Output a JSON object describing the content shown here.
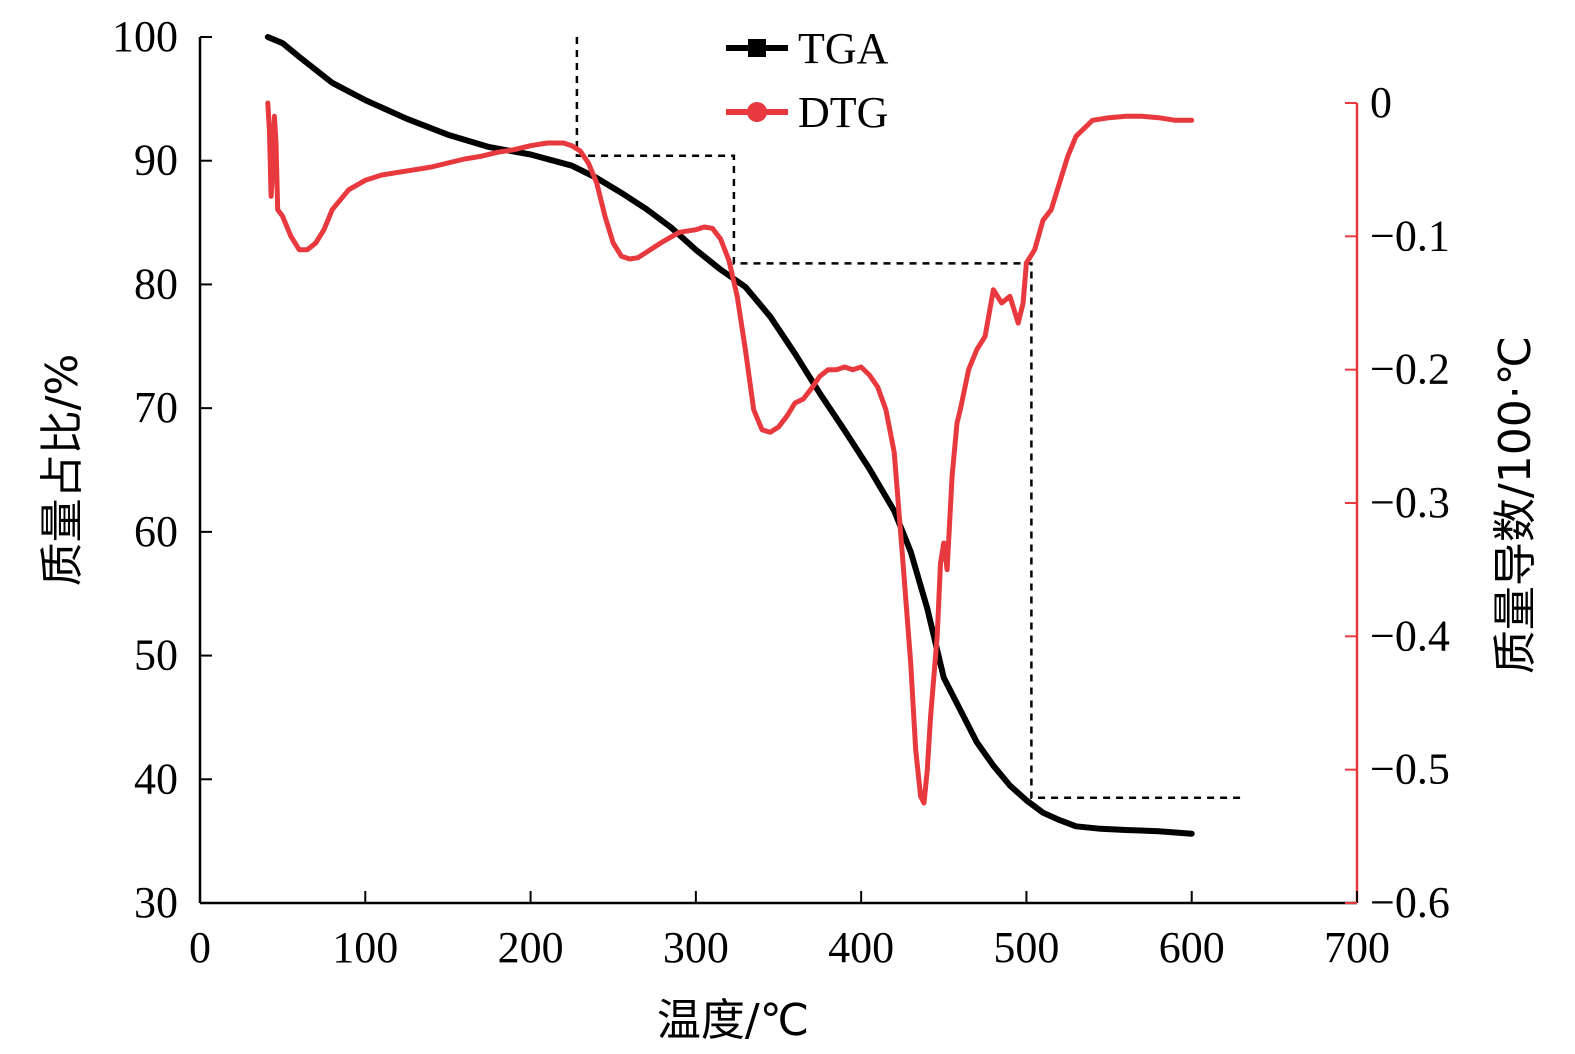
{
  "chart_data": {
    "type": "line",
    "xlabel": "温度/℃",
    "ylabel_left": "质量占比/%",
    "ylabel_right": "质量导数/100·℃",
    "xlim": [
      0,
      700
    ],
    "ylim_left": [
      30,
      100
    ],
    "ylim_right": [
      -0.6,
      0.0
    ],
    "x_ticks": [
      "0",
      "100",
      "200",
      "300",
      "400",
      "500",
      "600",
      "700"
    ],
    "y_left_ticks": [
      "30",
      "40",
      "50",
      "60",
      "70",
      "80",
      "90",
      "100"
    ],
    "y_right_ticks": [
      "0",
      "−0.1",
      "−0.2",
      "−0.3",
      "−0.4",
      "−0.5",
      "−0.6"
    ],
    "grid": false,
    "legend_position": "top-center",
    "series": [
      {
        "name": "TGA",
        "axis": "left",
        "color": "#000000",
        "marker": "square",
        "x": [
          41,
          50,
          60,
          80,
          100,
          125,
          150,
          175,
          200,
          225,
          240,
          255,
          270,
          285,
          300,
          315,
          330,
          345,
          360,
          375,
          390,
          405,
          420,
          430,
          440,
          450,
          460,
          470,
          480,
          490,
          500,
          510,
          520,
          530,
          545,
          560,
          580,
          600
        ],
        "y": [
          100,
          99.5,
          98.4,
          96.3,
          94.9,
          93.4,
          92.1,
          91.1,
          90.5,
          89.6,
          88.6,
          87.4,
          86.1,
          84.6,
          82.8,
          81.2,
          79.8,
          77.4,
          74.4,
          71.2,
          68.2,
          65.1,
          61.7,
          58.4,
          53.8,
          48.2,
          45.6,
          43.0,
          41.1,
          39.5,
          38.3,
          37.3,
          36.7,
          36.2,
          36.0,
          35.9,
          35.8,
          35.6
        ]
      },
      {
        "name": "DTG",
        "axis": "right",
        "color": "#e8393f",
        "marker": "circle",
        "x": [
          41,
          42,
          43,
          44,
          45,
          46,
          47,
          50,
          55,
          60,
          65,
          70,
          75,
          80,
          90,
          100,
          110,
          120,
          130,
          140,
          150,
          160,
          170,
          180,
          190,
          200,
          210,
          220,
          225,
          230,
          235,
          240,
          245,
          250,
          255,
          260,
          265,
          270,
          275,
          280,
          290,
          300,
          305,
          310,
          315,
          320,
          325,
          330,
          335,
          340,
          345,
          350,
          355,
          360,
          365,
          370,
          375,
          380,
          385,
          390,
          395,
          400,
          405,
          410,
          415,
          420,
          425,
          430,
          433,
          436,
          438,
          440,
          442,
          444,
          446,
          448,
          450,
          452,
          455,
          458,
          460,
          465,
          470,
          475,
          480,
          485,
          490,
          495,
          498,
          500,
          505,
          510,
          515,
          520,
          525,
          530,
          540,
          550,
          560,
          570,
          580,
          590,
          600
        ],
        "y": [
          0.0,
          -0.02,
          -0.07,
          -0.05,
          -0.01,
          -0.03,
          -0.08,
          -0.085,
          -0.1,
          -0.11,
          -0.11,
          -0.105,
          -0.095,
          -0.08,
          -0.065,
          -0.058,
          -0.054,
          -0.052,
          -0.05,
          -0.048,
          -0.045,
          -0.042,
          -0.04,
          -0.037,
          -0.035,
          -0.032,
          -0.03,
          -0.03,
          -0.032,
          -0.036,
          -0.045,
          -0.06,
          -0.085,
          -0.105,
          -0.115,
          -0.117,
          -0.116,
          -0.112,
          -0.108,
          -0.104,
          -0.097,
          -0.095,
          -0.093,
          -0.094,
          -0.102,
          -0.118,
          -0.145,
          -0.185,
          -0.23,
          -0.245,
          -0.247,
          -0.243,
          -0.235,
          -0.225,
          -0.222,
          -0.214,
          -0.205,
          -0.2,
          -0.2,
          -0.198,
          -0.2,
          -0.198,
          -0.204,
          -0.213,
          -0.23,
          -0.262,
          -0.34,
          -0.42,
          -0.485,
          -0.52,
          -0.525,
          -0.5,
          -0.46,
          -0.43,
          -0.4,
          -0.345,
          -0.33,
          -0.35,
          -0.28,
          -0.24,
          -0.23,
          -0.2,
          -0.185,
          -0.175,
          -0.14,
          -0.15,
          -0.145,
          -0.165,
          -0.15,
          -0.12,
          -0.11,
          -0.088,
          -0.08,
          -0.06,
          -0.04,
          -0.025,
          -0.013,
          -0.011,
          -0.01,
          -0.01,
          -0.011,
          -0.013,
          -0.013
        ]
      }
    ],
    "annotations": {
      "type": "step-guide-lines",
      "style": "dashed",
      "points": [
        {
          "x": 228,
          "y": 100
        },
        {
          "x": 228,
          "y": 90.4
        },
        {
          "x": 323,
          "y": 90.4
        },
        {
          "x": 323,
          "y": 81.7
        },
        {
          "x": 503,
          "y": 81.7
        },
        {
          "x": 503,
          "y": 38.5
        },
        {
          "x": 632,
          "y": 38.5
        }
      ]
    }
  }
}
